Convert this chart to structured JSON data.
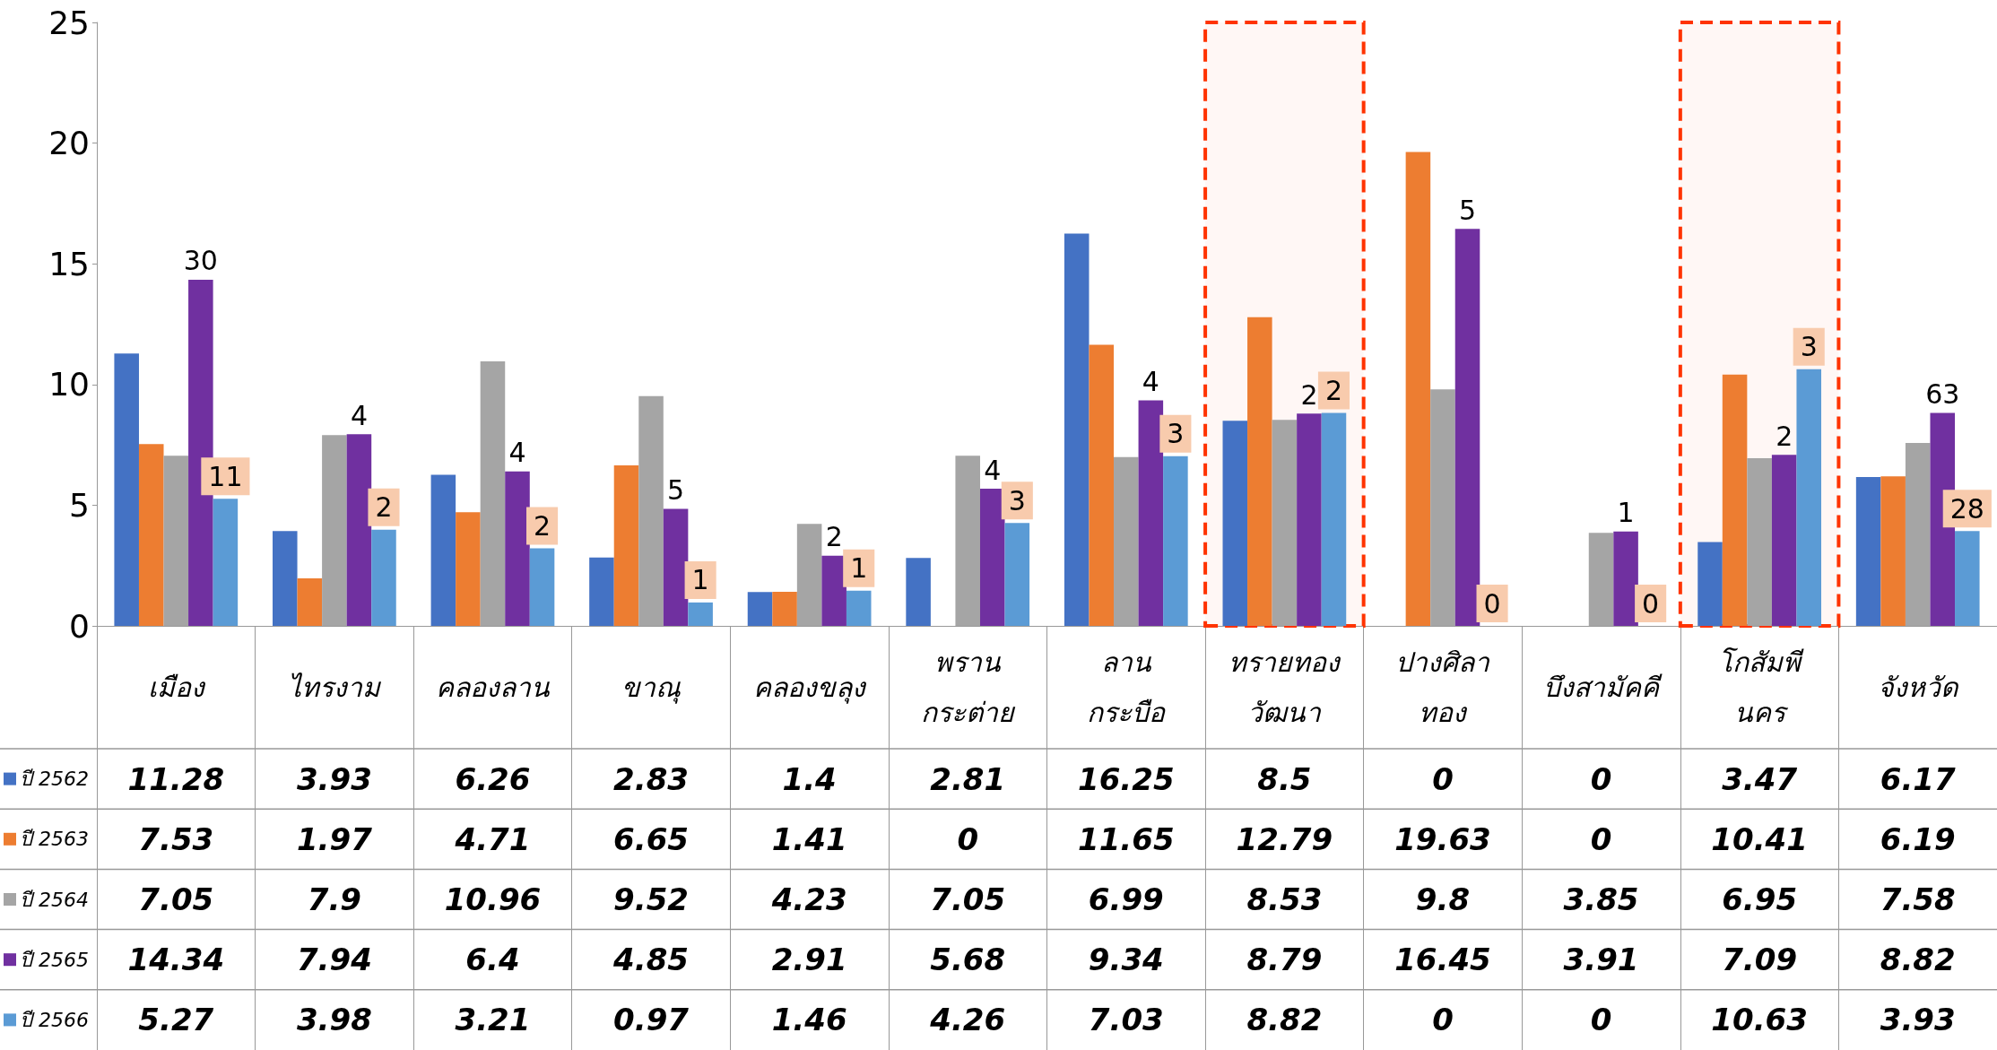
{
  "chart_data": {
    "type": "bar",
    "categories": [
      "เมือง",
      "ไทรงาม",
      "คลองลาน",
      "ขาณุ",
      "คลองขลุง",
      "พราน\nกระต่าย",
      "ลาน\nกระบือ",
      "ทรายทอง\nวัฒนา",
      "ปางศิลา\nทอง",
      "บึงสามัคคี",
      "โกสัมพี\nนคร",
      "จังหวัด"
    ],
    "series": [
      {
        "name": "ปี 2562",
        "color": "#4472c4",
        "values": [
          11.28,
          3.93,
          6.26,
          2.83,
          1.4,
          2.81,
          16.25,
          8.5,
          0,
          0,
          3.47,
          6.17
        ]
      },
      {
        "name": "ปี 2563",
        "color": "#ed7d31",
        "values": [
          7.53,
          1.97,
          4.71,
          6.65,
          1.41,
          0,
          11.65,
          12.79,
          19.63,
          0,
          10.41,
          6.19
        ]
      },
      {
        "name": "ปี 2564",
        "color": "#a5a5a5",
        "values": [
          7.05,
          7.9,
          10.96,
          9.52,
          4.23,
          7.05,
          6.99,
          8.53,
          9.8,
          3.85,
          6.95,
          7.58
        ]
      },
      {
        "name": "ปี 2565",
        "color": "#7030a0",
        "values": [
          14.34,
          7.94,
          6.4,
          4.85,
          2.91,
          5.68,
          9.34,
          8.79,
          16.45,
          3.91,
          7.09,
          8.82
        ]
      },
      {
        "name": "ปี 2566",
        "color": "#5b9bd5",
        "values": [
          5.27,
          3.98,
          3.21,
          0.97,
          1.46,
          4.26,
          7.03,
          8.82,
          0,
          0,
          10.63,
          3.93
        ]
      }
    ],
    "ylim": [
      0,
      25
    ],
    "yticks": [
      0,
      5,
      10,
      15,
      20,
      25
    ],
    "data_labels": true,
    "legend": "bottom left",
    "annotations": [
      "30",
      "4",
      "4",
      "5",
      "2",
      "4",
      "4",
      "2",
      "5",
      "1",
      "2",
      "63",
      "11",
      "2",
      "2",
      "1",
      "1",
      "3",
      "3",
      "2",
      "0",
      "0",
      "3",
      "28"
    ],
    "bands": [
      {
        "axis": "x",
        "from": "ทรายทอง\nวัฒนา",
        "to": "ทรายทอง\nวัฒนา",
        "color": "#ff3300"
      },
      {
        "axis": "x",
        "from": "โกสัมพี\nนคร",
        "to": "โกสัมพี\nนคร",
        "color": "#ff3300"
      }
    ]
  }
}
